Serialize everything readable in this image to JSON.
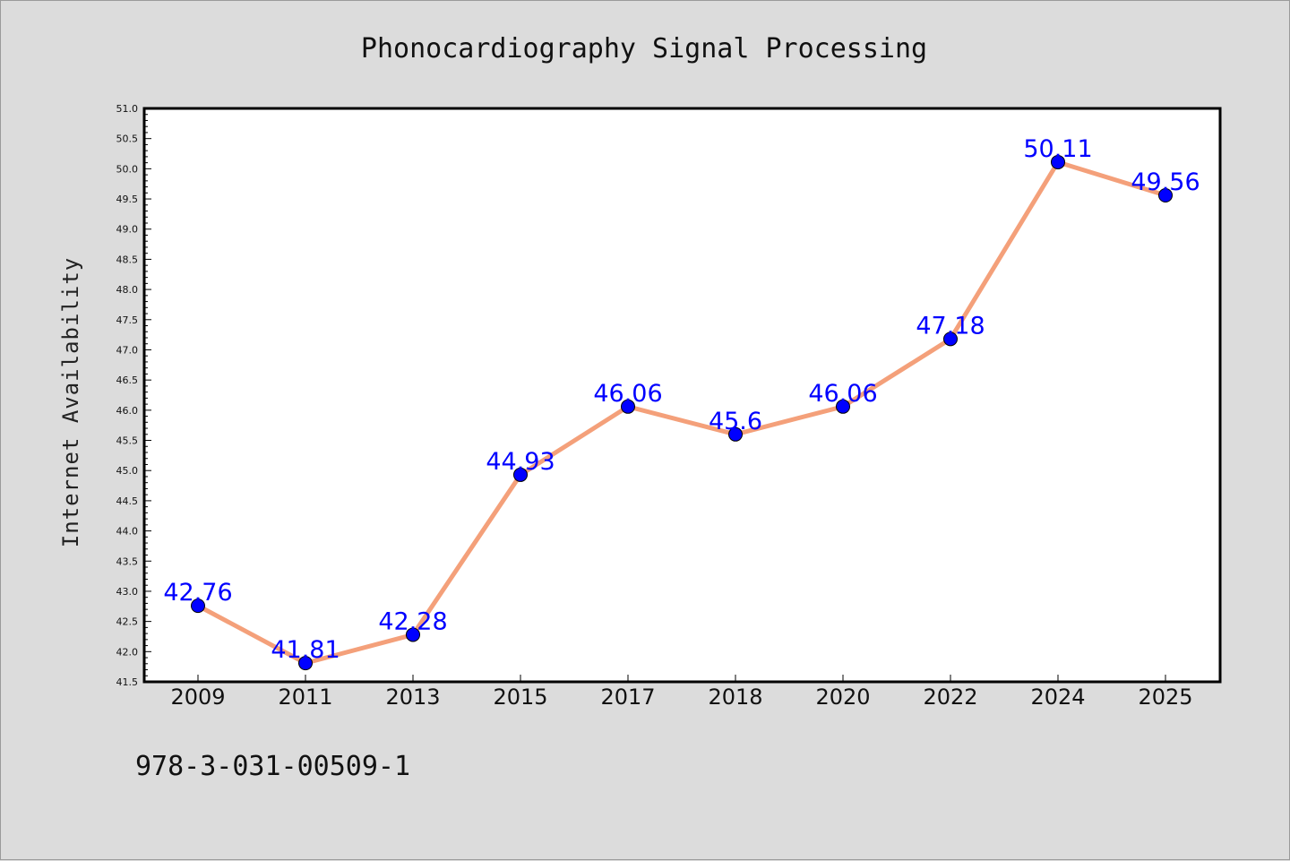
{
  "chart_data": {
    "type": "line",
    "title": "Phonocardiography Signal Processing",
    "xlabel": "",
    "ylabel": "Internet Availability",
    "categories": [
      "2009",
      "2011",
      "2013",
      "2015",
      "2017",
      "2018",
      "2020",
      "2022",
      "2024",
      "2025"
    ],
    "series": [
      {
        "values": [
          42.76,
          41.81,
          42.28,
          44.93,
          46.06,
          45.6,
          46.06,
          47.18,
          50.11,
          49.56
        ],
        "data_labels": [
          "42.76",
          "41.81",
          "42.28",
          "44.93",
          "46.06",
          "45.6",
          "46.06",
          "47.18",
          "50.11",
          "49.56"
        ],
        "line_color": "#f4a07a",
        "marker_color": "#0000ff"
      }
    ],
    "ylim": [
      41.5,
      51.0
    ],
    "yticks": [
      "41.5",
      "42.0",
      "42.5",
      "43.0",
      "43.5",
      "44.0",
      "44.5",
      "45.0",
      "45.5",
      "46.0",
      "46.5",
      "47.0",
      "47.5",
      "48.0",
      "48.5",
      "49.0",
      "49.5",
      "50.0",
      "50.5",
      "51.0"
    ],
    "grid": false,
    "legend": "none",
    "background_color": "#dcdcdc",
    "plot_background_color": "#ffffff",
    "label_color": "#0000ff"
  },
  "footer": {
    "isbn": "978-3-031-00509-1"
  }
}
